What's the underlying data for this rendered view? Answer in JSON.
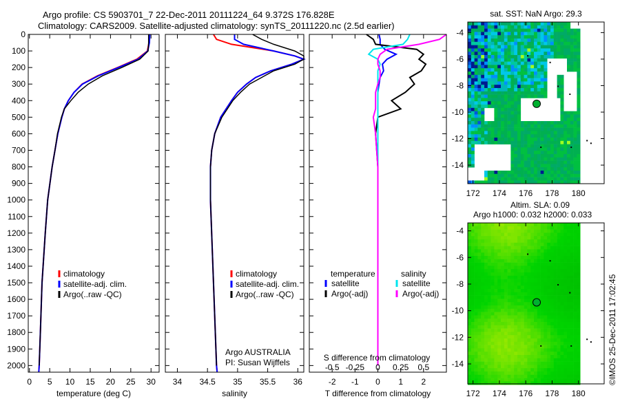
{
  "title": {
    "line1": "Argo profile: CS 5903701_7 22-Dec-2011 20111224_64 9.372S 176.828E",
    "line2": "Climatology: CARS2009. Satellite-adjusted climatology: synTS_20111220.nc (2.5d earlier)"
  },
  "credit": "©IMOS 25-Dec-2011 17:02:45",
  "annotation": {
    "line1": "Argo AUSTRALIA",
    "line2": "PI: Susan Wijffels"
  },
  "colors": {
    "climatology": "#ff0000",
    "satellite": "#0000ff",
    "argo": "#000000",
    "sal_satellite": "#00e5ee",
    "sal_argo": "#ff00ff"
  },
  "chart_data": [
    {
      "type": "line",
      "id": "temperature",
      "xlabel": "temperature (deg C)",
      "xlim": [
        -0.3,
        32
      ],
      "ylim": [
        0,
        2040
      ],
      "yreverse": true,
      "xticks": [
        0,
        5,
        10,
        15,
        20,
        25,
        30
      ],
      "yticks": [
        0,
        100,
        200,
        300,
        400,
        500,
        600,
        700,
        800,
        900,
        1000,
        1100,
        1200,
        1300,
        1400,
        1500,
        1600,
        1700,
        1800,
        1900,
        2000
      ],
      "legend": [
        "climatology",
        "satellite-adj. clim.",
        "Argo(..raw -QC)"
      ],
      "depth": [
        0,
        50,
        100,
        150,
        200,
        250,
        300,
        350,
        400,
        450,
        500,
        600,
        700,
        800,
        1000,
        1200,
        1500,
        1800,
        2000,
        2040
      ],
      "series": [
        {
          "name": "climatology",
          "color": "#ff0000",
          "values": [
            29.6,
            29.5,
            29.1,
            26.5,
            21.8,
            16.8,
            13.0,
            11.0,
            9.6,
            8.6,
            8.0,
            7.0,
            6.3,
            5.6,
            4.5,
            3.9,
            3.1,
            2.7,
            2.4,
            2.3
          ]
        },
        {
          "name": "satellite-adj. clim.",
          "color": "#0000ff",
          "values": [
            29.7,
            29.6,
            29.2,
            26.8,
            22.0,
            17.0,
            13.1,
            11.0,
            9.6,
            8.6,
            8.0,
            7.0,
            6.3,
            5.6,
            4.5,
            3.9,
            3.1,
            2.7,
            2.4,
            2.3
          ]
        },
        {
          "name": "Argo(..raw -QC)",
          "color": "#000000",
          "values": [
            29.4,
            29.4,
            29.3,
            27.2,
            22.8,
            18.0,
            14.5,
            12.0,
            10.2,
            8.6,
            7.9,
            6.9,
            6.3,
            5.6,
            4.5,
            3.9,
            3.1,
            2.7,
            2.4,
            null
          ]
        }
      ]
    },
    {
      "type": "line",
      "id": "salinity",
      "xlabel": "salinity",
      "xlim": [
        33.8,
        36.1
      ],
      "ylim": [
        0,
        2040
      ],
      "yreverse": true,
      "xticks": [
        34,
        34.5,
        35,
        35.5,
        36
      ],
      "legend": [
        "climatology",
        "satellite-adj. clim.",
        "Argo(..raw -QC)"
      ],
      "depth": [
        0,
        30,
        60,
        100,
        130,
        150,
        180,
        220,
        260,
        300,
        350,
        400,
        500,
        600,
        700,
        800,
        1000,
        1500,
        2000,
        2040
      ],
      "series": [
        {
          "name": "climatology",
          "color": "#ff0000",
          "values": [
            34.6,
            34.65,
            34.9,
            35.6,
            35.95,
            36.1,
            35.9,
            35.55,
            35.3,
            35.15,
            35.0,
            34.9,
            34.72,
            34.62,
            34.57,
            34.55,
            34.55,
            34.6,
            34.65,
            34.66
          ]
        },
        {
          "name": "satellite-adj. clim.",
          "color": "#0000ff",
          "values": [
            34.95,
            34.95,
            35.1,
            35.6,
            35.95,
            36.1,
            35.9,
            35.55,
            35.3,
            35.15,
            35.0,
            34.9,
            34.72,
            34.62,
            34.57,
            34.55,
            34.55,
            34.6,
            34.65,
            34.66
          ]
        },
        {
          "name": "Argo(..raw -QC)",
          "color": "#000000",
          "values": [
            35.25,
            35.4,
            35.6,
            35.95,
            36.1,
            36.1,
            35.95,
            35.6,
            35.4,
            35.2,
            35.05,
            34.92,
            34.74,
            34.62,
            34.57,
            34.55,
            34.55,
            34.6,
            34.65,
            null
          ]
        }
      ]
    },
    {
      "type": "line",
      "id": "difference",
      "xlabel": "T difference from climatology",
      "xlabel_top": "S difference from climatology",
      "xlim": [
        -3,
        3
      ],
      "ylim": [
        0,
        2040
      ],
      "yreverse": true,
      "xticks": [
        -2,
        -1,
        0,
        1,
        2
      ],
      "xticks_s": [
        -0.5,
        -0.25,
        0,
        0.25,
        0.5
      ],
      "xticks_s_labels": [
        "-0.5",
        "-0.25",
        "0",
        "0.25",
        "0.5"
      ],
      "legend_headers": [
        "temperature",
        "salinity"
      ],
      "legend": [
        "satellite",
        "Argo(-adj)",
        "satellite",
        "Argo(-adj)"
      ],
      "depth": [
        0,
        30,
        60,
        90,
        120,
        150,
        180,
        220,
        260,
        300,
        350,
        400,
        450,
        500,
        600,
        800,
        1000,
        1500,
        2000
      ],
      "series": [
        {
          "name": "temperature satellite",
          "color": "#0000ff",
          "values": [
            0.05,
            0.1,
            0.1,
            0.3,
            0.8,
            0.4,
            0.2,
            0.25,
            0.1,
            0.05,
            0.0,
            0.0,
            0.0,
            0.0,
            0.0,
            0.0,
            0.0,
            0.0,
            0.0
          ]
        },
        {
          "name": "temperature Argo(-adj)",
          "color": "#000000",
          "values": [
            -0.5,
            -0.2,
            -0.1,
            1.7,
            2.0,
            1.8,
            2.1,
            1.9,
            1.4,
            1.6,
            1.2,
            0.6,
            1.0,
            0.0,
            -0.1,
            0.0,
            0.0,
            0.0,
            0.0
          ]
        },
        {
          "name": "salinity satellite",
          "color": "#00e5ee",
          "values": [
            1.4,
            1.3,
            1.1,
            -0.2,
            -0.4,
            0.0,
            0.1,
            0.0,
            0.0,
            0.0,
            0.0,
            0.0,
            0.0,
            0.0,
            0.0,
            0.0,
            0.0,
            0.0,
            0.0
          ]
        },
        {
          "name": "salinity Argo(-adj)",
          "color": "#ff00ff",
          "values": [
            3.0,
            2.7,
            1.8,
            0.4,
            0.1,
            0.0,
            0.0,
            0.1,
            0.1,
            0.0,
            -0.1,
            -0.1,
            -0.1,
            -0.2,
            -0.1,
            0.0,
            0.0,
            0.0,
            0.0
          ]
        }
      ]
    },
    {
      "type": "heatmap",
      "id": "sst-map",
      "title": "sat. SST: NaN Argo: 29.3",
      "xlim": [
        171.6,
        181.95
      ],
      "ylim": [
        -15.4,
        -3.2
      ],
      "xticks": [
        172,
        174,
        176,
        178,
        180
      ],
      "yticks": [
        -4,
        -6,
        -8,
        -10,
        -12,
        -14
      ],
      "argo_position": [
        176.828,
        -9.372
      ]
    },
    {
      "type": "heatmap",
      "id": "sla-map",
      "title": "Altim. SLA: 0.09",
      "subtitle": "Argo h1000: 0.032 h2000: 0.033",
      "xlim": [
        171.6,
        181.95
      ],
      "ylim": [
        -15.5,
        -3.4
      ],
      "xticks": [
        172,
        174,
        176,
        178,
        180
      ],
      "yticks": [
        -4,
        -6,
        -8,
        -10,
        -12,
        -14
      ],
      "argo_position": [
        176.828,
        -9.372
      ]
    }
  ]
}
